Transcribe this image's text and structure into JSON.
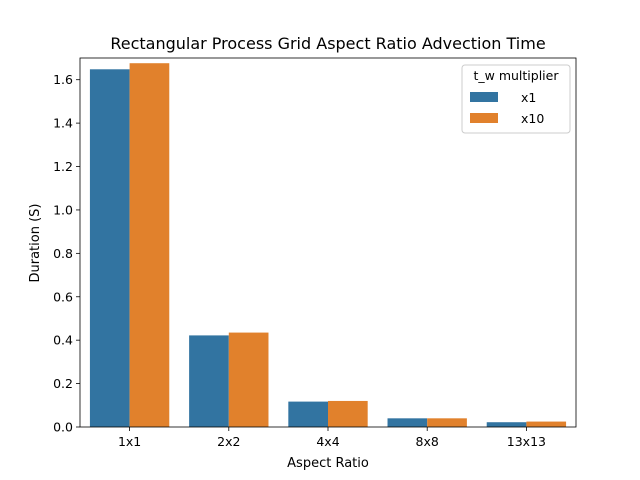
{
  "chart_data": {
    "type": "bar",
    "title": "Rectangular Process Grid Aspect Ratio Advection Time",
    "xlabel": "Aspect Ratio",
    "ylabel": "Duration (S)",
    "categories": [
      "1x1",
      "2x2",
      "4x4",
      "8x8",
      "13x13"
    ],
    "series": [
      {
        "name": "x1",
        "color": "#3274a1",
        "values": [
          1.648,
          0.422,
          0.117,
          0.04,
          0.022
        ]
      },
      {
        "name": "x10",
        "color": "#e1812c",
        "values": [
          1.676,
          0.435,
          0.12,
          0.04,
          0.025
        ]
      }
    ],
    "ylim": [
      0,
      1.7
    ],
    "yticks": [
      "0.0",
      "0.2",
      "0.4",
      "0.6",
      "0.8",
      "1.0",
      "1.2",
      "1.4",
      "1.6"
    ],
    "grid": false,
    "legend": {
      "title": "t_w multiplier",
      "position": "top-right"
    }
  }
}
